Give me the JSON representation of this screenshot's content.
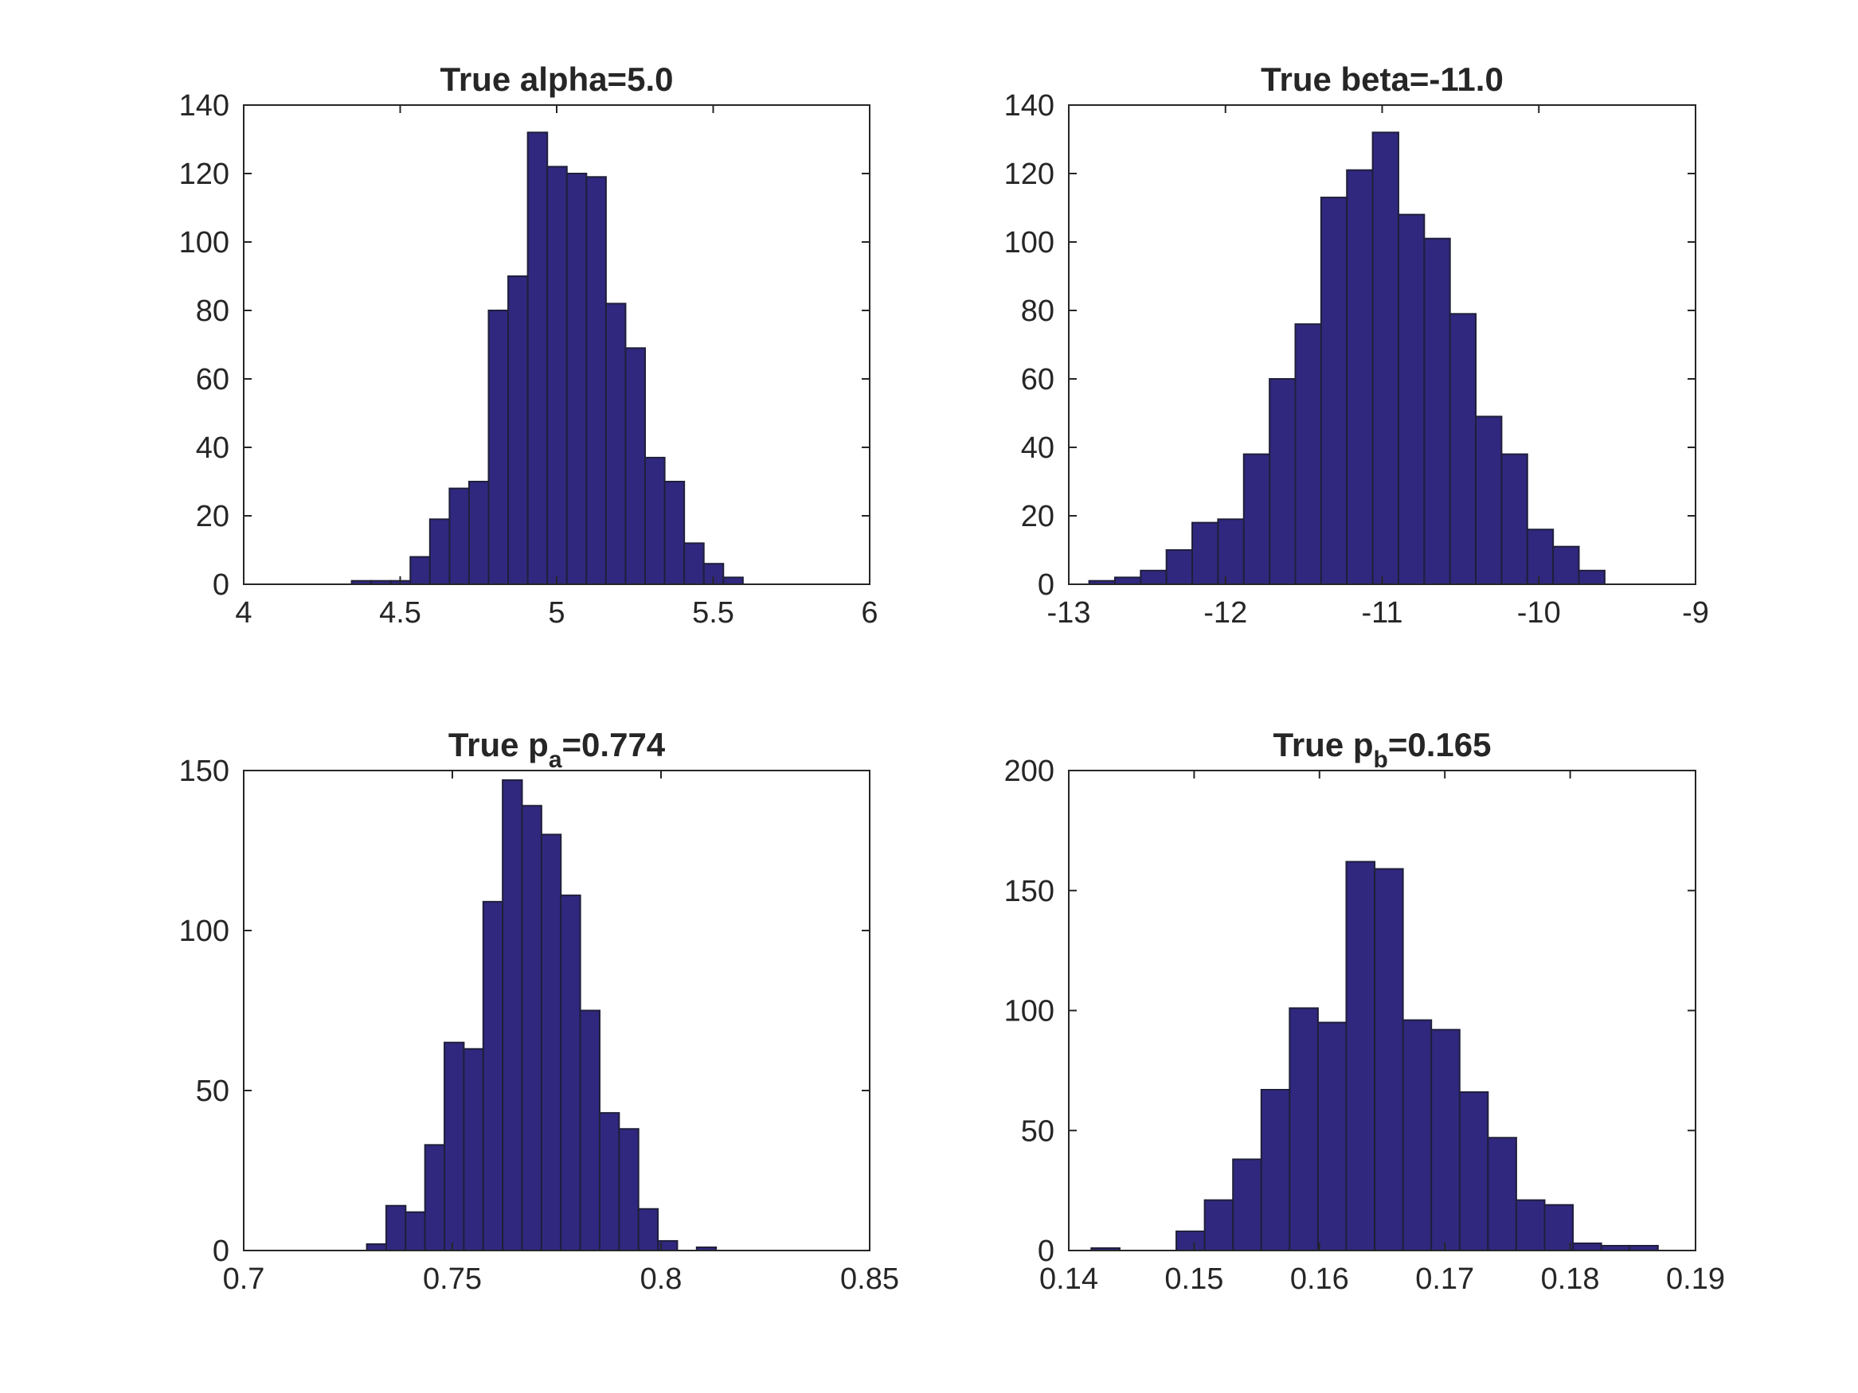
{
  "chart_data": [
    {
      "type": "bar",
      "title_main": "True alpha=5.0",
      "title_sub": "",
      "title_suffix": "",
      "xlim": [
        4,
        6
      ],
      "ylim": [
        0,
        140
      ],
      "xticks": [
        4,
        4.5,
        5,
        5.5,
        6
      ],
      "xtick_labels": [
        "4",
        "4.5",
        "5",
        "5.5",
        "6"
      ],
      "yticks": [
        0,
        20,
        40,
        60,
        80,
        100,
        120,
        140
      ],
      "ytick_labels": [
        "0",
        "20",
        "40",
        "60",
        "80",
        "100",
        "120",
        "140"
      ],
      "bin_start": 4.345,
      "bin_width": 0.0625,
      "values": [
        1,
        1,
        1,
        8,
        19,
        28,
        30,
        80,
        90,
        132,
        122,
        120,
        119,
        82,
        69,
        37,
        30,
        12,
        6,
        2
      ],
      "color": "#30287f"
    },
    {
      "type": "bar",
      "title_main": "True beta=-11.0",
      "title_sub": "",
      "title_suffix": "",
      "xlim": [
        -13,
        -9
      ],
      "ylim": [
        0,
        140
      ],
      "xticks": [
        -13,
        -12,
        -11,
        -10,
        -9
      ],
      "xtick_labels": [
        "-13",
        "-12",
        "-11",
        "-10",
        "-9"
      ],
      "yticks": [
        0,
        20,
        40,
        60,
        80,
        100,
        120,
        140
      ],
      "ytick_labels": [
        "0",
        "20",
        "40",
        "60",
        "80",
        "100",
        "120",
        "140"
      ],
      "bin_start": -12.87,
      "bin_width": 0.1645,
      "values": [
        1,
        2,
        4,
        10,
        18,
        19,
        38,
        60,
        76,
        113,
        121,
        132,
        108,
        101,
        79,
        49,
        38,
        16,
        11,
        4
      ],
      "color": "#30287f"
    },
    {
      "type": "bar",
      "title_main": "True p",
      "title_sub": "a",
      "title_suffix": "=0.774",
      "xlim": [
        0.7,
        0.85
      ],
      "ylim": [
        0,
        150
      ],
      "xticks": [
        0.7,
        0.75,
        0.8,
        0.85
      ],
      "xtick_labels": [
        "0.7",
        "0.75",
        "0.8",
        "0.85"
      ],
      "yticks": [
        0,
        50,
        100,
        150
      ],
      "ytick_labels": [
        "0",
        "50",
        "100",
        "150"
      ],
      "bin_start": 0.7295,
      "bin_width": 0.00465,
      "values": [
        2,
        14,
        12,
        33,
        65,
        63,
        109,
        147,
        139,
        130,
        111,
        75,
        43,
        38,
        13,
        3,
        0,
        1
      ],
      "color": "#30287f"
    },
    {
      "type": "bar",
      "title_main": "True p",
      "title_sub": "b",
      "title_suffix": "=0.165",
      "xlim": [
        0.14,
        0.19
      ],
      "ylim": [
        0,
        200
      ],
      "xticks": [
        0.14,
        0.15,
        0.16,
        0.17,
        0.18,
        0.19
      ],
      "xtick_labels": [
        "0.14",
        "0.15",
        "0.16",
        "0.17",
        "0.18",
        "0.19"
      ],
      "yticks": [
        0,
        50,
        100,
        150,
        200
      ],
      "ytick_labels": [
        "0",
        "50",
        "100",
        "150",
        "200"
      ],
      "bin_start": 0.1418,
      "bin_width": 0.00226,
      "values": [
        1,
        0,
        0,
        8,
        21,
        38,
        67,
        101,
        95,
        162,
        159,
        96,
        92,
        66,
        47,
        21,
        19,
        3,
        2,
        2
      ],
      "color": "#30287f"
    }
  ]
}
